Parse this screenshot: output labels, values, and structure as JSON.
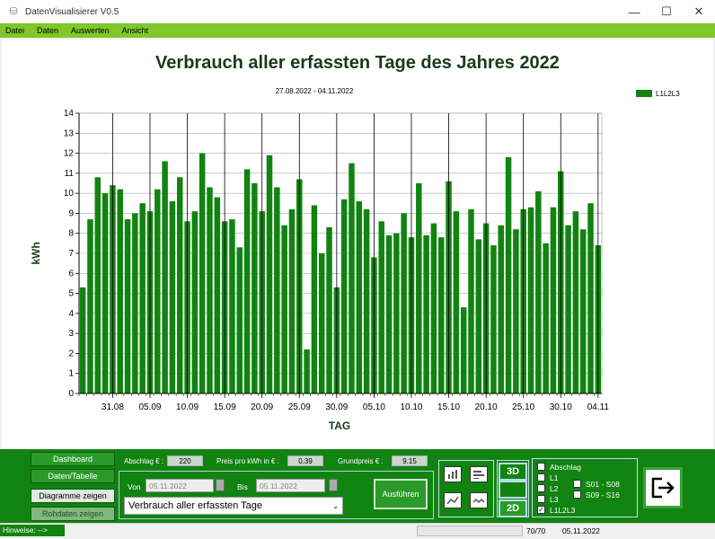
{
  "window": {
    "title": "DatenVisualisierer V0.5",
    "minimize": "—",
    "maximize": "☐",
    "close": "✕"
  },
  "menu": [
    "Datei",
    "Daten",
    "Auswerten",
    "Ansicht"
  ],
  "chart_data": {
    "type": "bar",
    "title": "Verbrauch aller erfassten Tage des Jahres 2022",
    "subtitle": "27.08.2022 - 04.11.2022",
    "xlabel": "TAG",
    "ylabel": "kWh",
    "ylim": [
      0,
      14
    ],
    "yticks": [
      0,
      1,
      2,
      3,
      4,
      5,
      6,
      7,
      8,
      9,
      10,
      11,
      12,
      13,
      14
    ],
    "xtick_labels": [
      "31.08",
      "05.09",
      "10.09",
      "15.09",
      "20.09",
      "25.09",
      "30.09",
      "05.10",
      "10.10",
      "15.10",
      "20.10",
      "25.10",
      "30.10",
      "04.11"
    ],
    "legend": "top-right",
    "grid": true,
    "series": [
      {
        "name": "L1L2L3",
        "color": "#118311",
        "values": [
          5.3,
          8.7,
          10.8,
          10.0,
          10.4,
          10.2,
          8.7,
          9.0,
          9.5,
          9.1,
          10.2,
          11.6,
          9.6,
          10.8,
          8.6,
          9.1,
          12.0,
          10.3,
          9.8,
          8.6,
          8.7,
          7.3,
          11.2,
          10.5,
          9.1,
          11.9,
          10.3,
          8.4,
          9.2,
          10.7,
          2.2,
          9.4,
          7.0,
          8.3,
          5.3,
          9.7,
          11.5,
          9.6,
          9.2,
          6.8,
          8.6,
          7.9,
          8.0,
          9.0,
          7.8,
          10.5,
          7.9,
          8.5,
          7.8,
          10.6,
          9.1,
          4.3,
          9.2,
          7.7,
          8.5,
          7.4,
          8.4,
          11.8,
          8.2,
          9.2,
          9.3,
          10.1,
          7.5,
          9.3,
          11.1,
          8.4,
          9.1,
          8.2,
          9.5,
          7.4
        ]
      }
    ]
  },
  "nav": {
    "dashboard": "Dashboard",
    "table": "Daten/Tabelle",
    "diagrams": "Diagramme zeigen",
    "raw": "Rohdaten zeigen"
  },
  "fields": {
    "abschlag_label": "Abschlag € :",
    "abschlag_value": "220",
    "preis_label": "Preis pro kWh in € :",
    "preis_value": "0.39",
    "grundpreis_label": "Grundpreis € :",
    "grundpreis_value": "9.15"
  },
  "range": {
    "von_label": "Von",
    "von_value": "05.11.2022",
    "bis_label": "Bis",
    "bis_value": "05.11.2022"
  },
  "combo_value": "Verbrauch aller erfassten Tage",
  "run_button": "Ausführen",
  "view_buttons": {
    "three_d": "3D",
    "two_d": "2D"
  },
  "checkboxes": {
    "abschlag": "Abschlag",
    "l1": "L1",
    "l2": "L2",
    "l3": "L3",
    "l1l2l3": "L1L2L3",
    "s01": "S01 - S08",
    "s09": "S09 - S16"
  },
  "status": {
    "hinweis": "Hinweise:  -->",
    "count": "70/70",
    "date": "05.11.2022"
  }
}
